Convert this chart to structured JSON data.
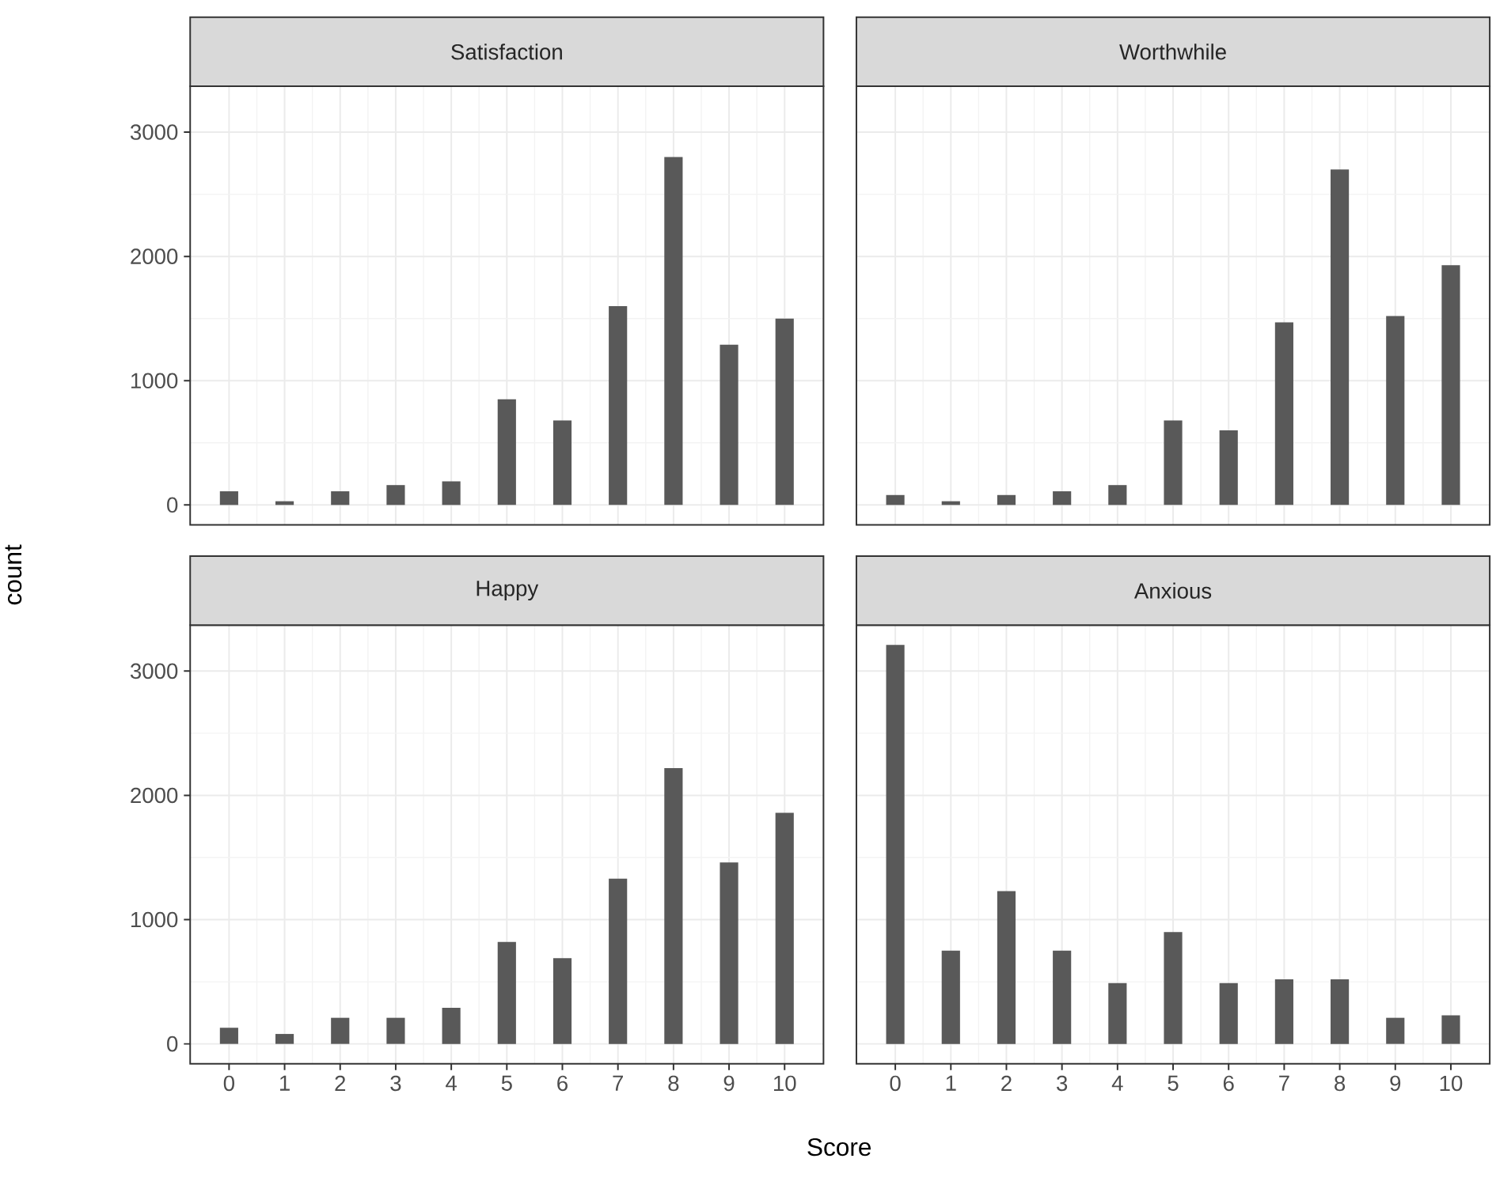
{
  "chart_data": [
    {
      "type": "bar",
      "title": "Satisfaction",
      "ylabel": "count",
      "x": [
        0,
        1,
        2,
        3,
        4,
        5,
        6,
        7,
        8,
        9,
        10
      ],
      "values": [
        110,
        30,
        110,
        160,
        190,
        850,
        680,
        1600,
        2800,
        1290,
        1500
      ],
      "color": "#595959",
      "xlim": [
        -0.7,
        10.7
      ],
      "ylim": [
        -160,
        3370
      ],
      "xticks": [
        0,
        1,
        2,
        3,
        4,
        5,
        6,
        7,
        8,
        9,
        10
      ],
      "yticks": [
        0,
        1000,
        2000,
        3000
      ],
      "grid": true,
      "tick_labels": "y"
    },
    {
      "type": "bar",
      "title": "Worthwhile",
      "x": [
        0,
        1,
        2,
        3,
        4,
        5,
        6,
        7,
        8,
        9,
        10
      ],
      "values": [
        80,
        30,
        80,
        110,
        160,
        680,
        600,
        1470,
        2700,
        1520,
        1930
      ],
      "color": "#595959",
      "xlim": [
        -0.7,
        10.7
      ],
      "ylim": [
        -160,
        3370
      ],
      "xticks": [
        0,
        1,
        2,
        3,
        4,
        5,
        6,
        7,
        8,
        9,
        10
      ],
      "yticks": [
        0,
        1000,
        2000,
        3000
      ],
      "grid": true,
      "tick_labels": false
    },
    {
      "type": "bar",
      "title": "Happy",
      "xlabel": "Score",
      "x": [
        0,
        1,
        2,
        3,
        4,
        5,
        6,
        7,
        8,
        9,
        10
      ],
      "values": [
        130,
        80,
        210,
        210,
        290,
        820,
        690,
        1330,
        2220,
        1460,
        1860
      ],
      "color": "#595959",
      "xlim": [
        -0.7,
        10.7
      ],
      "ylim": [
        -160,
        3370
      ],
      "xticks": [
        0,
        1,
        2,
        3,
        4,
        5,
        6,
        7,
        8,
        9,
        10
      ],
      "yticks": [
        0,
        1000,
        2000,
        3000
      ],
      "grid": true
    },
    {
      "type": "bar",
      "title": "Anxious",
      "x": [
        0,
        1,
        2,
        3,
        4,
        5,
        6,
        7,
        8,
        9,
        10
      ],
      "values": [
        3210,
        750,
        1230,
        750,
        490,
        900,
        490,
        520,
        520,
        210,
        230
      ],
      "color": "#595959",
      "xlim": [
        -0.7,
        10.7
      ],
      "ylim": [
        -160,
        3370
      ],
      "xticks": [
        0,
        1,
        2,
        3,
        4,
        5,
        6,
        7,
        8,
        9,
        10
      ],
      "yticks": [
        0,
        1000,
        2000,
        3000
      ],
      "grid": true,
      "tick_labels": "x"
    }
  ]
}
